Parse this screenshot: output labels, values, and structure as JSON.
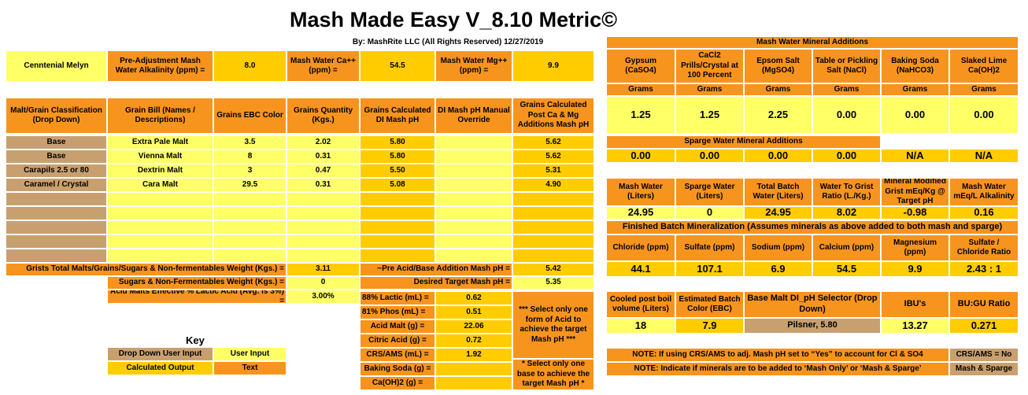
{
  "header": {
    "title": "Mash Made Easy V_8.10 Metric©",
    "byline": "By: MashRite LLC (All Rights Reserved) 12/27/2019"
  },
  "top": {
    "recipe_name": "Cenntenial Melyn",
    "alk_label": "Pre-Adjustment Mash Water Alkalinity (ppm) =",
    "alk_value": "8.0",
    "ca_label": "Mash Water Ca++ (ppm) =",
    "ca_value": "54.5",
    "mg_label": "Mash Water Mg++ (ppm) =",
    "mg_value": "9.9"
  },
  "grain_table": {
    "headers": {
      "classification": "Malt/Grain Classification (Drop Down)",
      "bill": "Grain Bill (Names / Descriptions)",
      "ebc": "Grains EBC Color",
      "qty": "Grains Quantity (Kgs.)",
      "di_ph": "Grains Calculated DI Mash pH",
      "override": "DI Mash pH Manual Override",
      "post_ph": "Grains Calculated Post Ca & Mg Additions Mash pH"
    },
    "rows": [
      {
        "cls": "Base",
        "name": "Extra Pale Malt",
        "ebc": "3.5",
        "qty": "2.02",
        "di": "5.80",
        "ovr": "",
        "post": "5.62"
      },
      {
        "cls": "Base",
        "name": "Vienna Malt",
        "ebc": "8",
        "qty": "0.31",
        "di": "5.80",
        "ovr": "",
        "post": "5.62"
      },
      {
        "cls": "Carapils 2.5 or 80",
        "name": "Dextrin Malt",
        "ebc": "3",
        "qty": "0.47",
        "di": "5.50",
        "ovr": "",
        "post": "5.31"
      },
      {
        "cls": "Caramel / Crystal",
        "name": "Cara Malt",
        "ebc": "29.5",
        "qty": "0.31",
        "di": "5.08",
        "ovr": "",
        "post": "4.90"
      },
      {
        "cls": "",
        "name": "",
        "ebc": "",
        "qty": "",
        "di": "",
        "ovr": "",
        "post": ""
      },
      {
        "cls": "",
        "name": "",
        "ebc": "",
        "qty": "",
        "di": "",
        "ovr": "",
        "post": ""
      },
      {
        "cls": "",
        "name": "",
        "ebc": "",
        "qty": "",
        "di": "",
        "ovr": "",
        "post": ""
      },
      {
        "cls": "",
        "name": "",
        "ebc": "",
        "qty": "",
        "di": "",
        "ovr": "",
        "post": ""
      }
    ]
  },
  "totals": {
    "grist_label": "Grists Total Malts/Grains/Sugars & Non-fermentables Weight (Kgs.) =",
    "grist_value": "3.11",
    "pre_acid_label": "~Pre Acid/Base Addition Mash pH =",
    "pre_acid_value": "5.42",
    "sugars_label": "Sugars & Non-Fermentables Weight (Kgs.) =",
    "sugars_value": "0",
    "target_label": "Desired Target Mash pH =",
    "target_value": "5.35",
    "acid_malt_label": "Acid Malts Effective % Lactic Acid (Avg. is 3%) =",
    "acid_malt_value": "3.00%"
  },
  "acids": {
    "rows": [
      {
        "label": "88%  Lactic (mL) =",
        "value": "0.62"
      },
      {
        "label": "81%  Phos  (mL) =",
        "value": "0.51"
      },
      {
        "label": "Acid Malt (g) =",
        "value": "22.06"
      },
      {
        "label": "Citric Acid (g) =",
        "value": "0.72"
      },
      {
        "label": "CRS/AMS (mL) =",
        "value": "1.92"
      },
      {
        "label": "Baking Soda (g) =",
        "value": ""
      },
      {
        "label": "Ca(OH)2 (g) =",
        "value": ""
      }
    ],
    "note_acid": "*** Select only one form of Acid to achieve the target Mash pH ***",
    "note_base": "* Select only one base to achieve the target Mash pH *"
  },
  "key": {
    "title": "Key",
    "dropdown": "Drop Down User Input",
    "user_input": "User Input",
    "calculated": "Calculated Output",
    "text": "Text"
  },
  "minerals": {
    "title": "Mash Water Mineral Additions",
    "headers": [
      "Gypsum (CaSO4)",
      "CaCl2 Prills/Crystal at 100 Percent",
      "Epsom Salt (MgSO4)",
      "Table or Pickling Salt (NaCl)",
      "Baking Soda (NaHCO3)",
      "Slaked Lime Ca(OH)2"
    ],
    "unit": "Grams",
    "mash_values": [
      "1.25",
      "1.25",
      "2.25",
      "0.00",
      "0.00",
      "0.00"
    ],
    "sparge_title": "Sparge Water Mineral Additions",
    "sparge_values": [
      "0.00",
      "0.00",
      "0.00",
      "0.00",
      "N/A",
      "N/A"
    ]
  },
  "volumes": {
    "headers": [
      "Mash Water (Liters)",
      "Sparge Water (Liters)",
      "Total Batch Water (Liters)",
      "Water To Grist Ratio (L./Kg.)",
      "Mineral Modified Grist mEq/Kg @ Target pH",
      "Mash Water mEq/L Alkalinity"
    ],
    "values": [
      "24.95",
      "0",
      "24.95",
      "8.02",
      "-0.98",
      "0.16"
    ]
  },
  "finished": {
    "title": "Finished Batch Mineralization (Assumes minerals as above added to both mash and sparge)",
    "headers": [
      "Chloride (ppm)",
      "Sulfate (ppm)",
      "Sodium (ppm)",
      "Calcium (ppm)",
      "Magnesium (ppm)",
      "Sulfate / Chloride Ratio"
    ],
    "values": [
      "44.1",
      "107.1",
      "6.9",
      "54.5",
      "9.9",
      "2.43 : 1"
    ]
  },
  "boil": {
    "vol_label": "Cooled post boil volume (Liters)",
    "vol_value": "18",
    "color_label": "Estimated Batch Color (EBC)",
    "color_value": "7.9",
    "selector_label": "Base Malt DI_pH Selector (Drop Down)",
    "selector_value": "Pilsner, 5.80",
    "ibu_label": "IBU's",
    "ibu_value": "13.27",
    "bugu_label": "BU:GU Ratio",
    "bugu_value": "0.271"
  },
  "notes": {
    "crs": "NOTE: If using CRS/AMS to adj. Mash pH set to “Yes” to account for Cl & SO4",
    "crs_value": "CRS/AMS = No",
    "mash_sparge": "NOTE: Indicate if minerals are to be added to ‘Mash Only’ or ‘Mash & Sparge’",
    "mash_sparge_value": "Mash & Sparge"
  }
}
